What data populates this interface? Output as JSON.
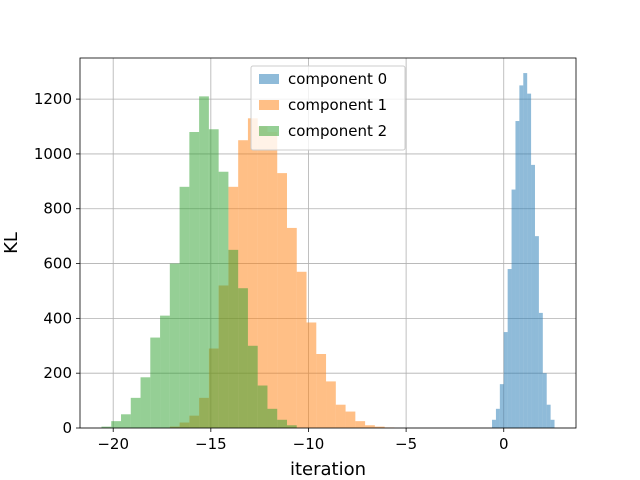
{
  "chart_data": {
    "type": "histogram",
    "title": "",
    "xlabel": "iteration",
    "ylabel": "KL",
    "xlim": [
      -21.7,
      3.7
    ],
    "ylim": [
      0,
      1350
    ],
    "xticks": [
      -20,
      -15,
      -10,
      -5,
      0
    ],
    "yticks": [
      0,
      200,
      400,
      600,
      800,
      1000,
      1200
    ],
    "grid": true,
    "legend_position": "top-center",
    "series": [
      {
        "name": "component 0",
        "color": "#1f77b4",
        "opacity": 0.5,
        "bin_edges": [
          -0.6,
          -0.4,
          -0.2,
          0.0,
          0.2,
          0.4,
          0.6,
          0.8,
          1.0,
          1.2,
          1.4,
          1.6,
          1.8,
          2.0,
          2.2,
          2.4,
          2.6
        ],
        "counts": [
          30,
          70,
          160,
          350,
          580,
          870,
          1120,
          1250,
          1295,
          1220,
          960,
          700,
          420,
          200,
          85,
          30
        ]
      },
      {
        "name": "component 1",
        "color": "#ff7f0e",
        "opacity": 0.5,
        "bin_edges": [
          -17.1,
          -16.6,
          -16.1,
          -15.6,
          -15.1,
          -14.6,
          -14.1,
          -13.6,
          -13.1,
          -12.6,
          -12.1,
          -11.6,
          -11.1,
          -10.6,
          -10.1,
          -9.6,
          -9.1,
          -8.6,
          -8.1,
          -7.6,
          -7.1,
          -6.6,
          -6.1,
          -5.6
        ],
        "counts": [
          5,
          20,
          45,
          110,
          290,
          520,
          880,
          1050,
          1130,
          1100,
          1080,
          930,
          730,
          570,
          385,
          270,
          170,
          85,
          60,
          25,
          10,
          5,
          2
        ]
      },
      {
        "name": "component 2",
        "color": "#2ca02c",
        "opacity": 0.5,
        "bin_edges": [
          -20.6,
          -20.1,
          -19.6,
          -19.1,
          -18.6,
          -18.1,
          -17.6,
          -17.1,
          -16.6,
          -16.1,
          -15.6,
          -15.1,
          -14.6,
          -14.1,
          -13.6,
          -13.1,
          -12.6,
          -12.1,
          -11.6,
          -11.1,
          -10.6
        ],
        "counts": [
          5,
          25,
          50,
          110,
          185,
          330,
          410,
          600,
          880,
          1080,
          1210,
          1090,
          935,
          650,
          510,
          300,
          155,
          70,
          30,
          10
        ]
      }
    ]
  }
}
